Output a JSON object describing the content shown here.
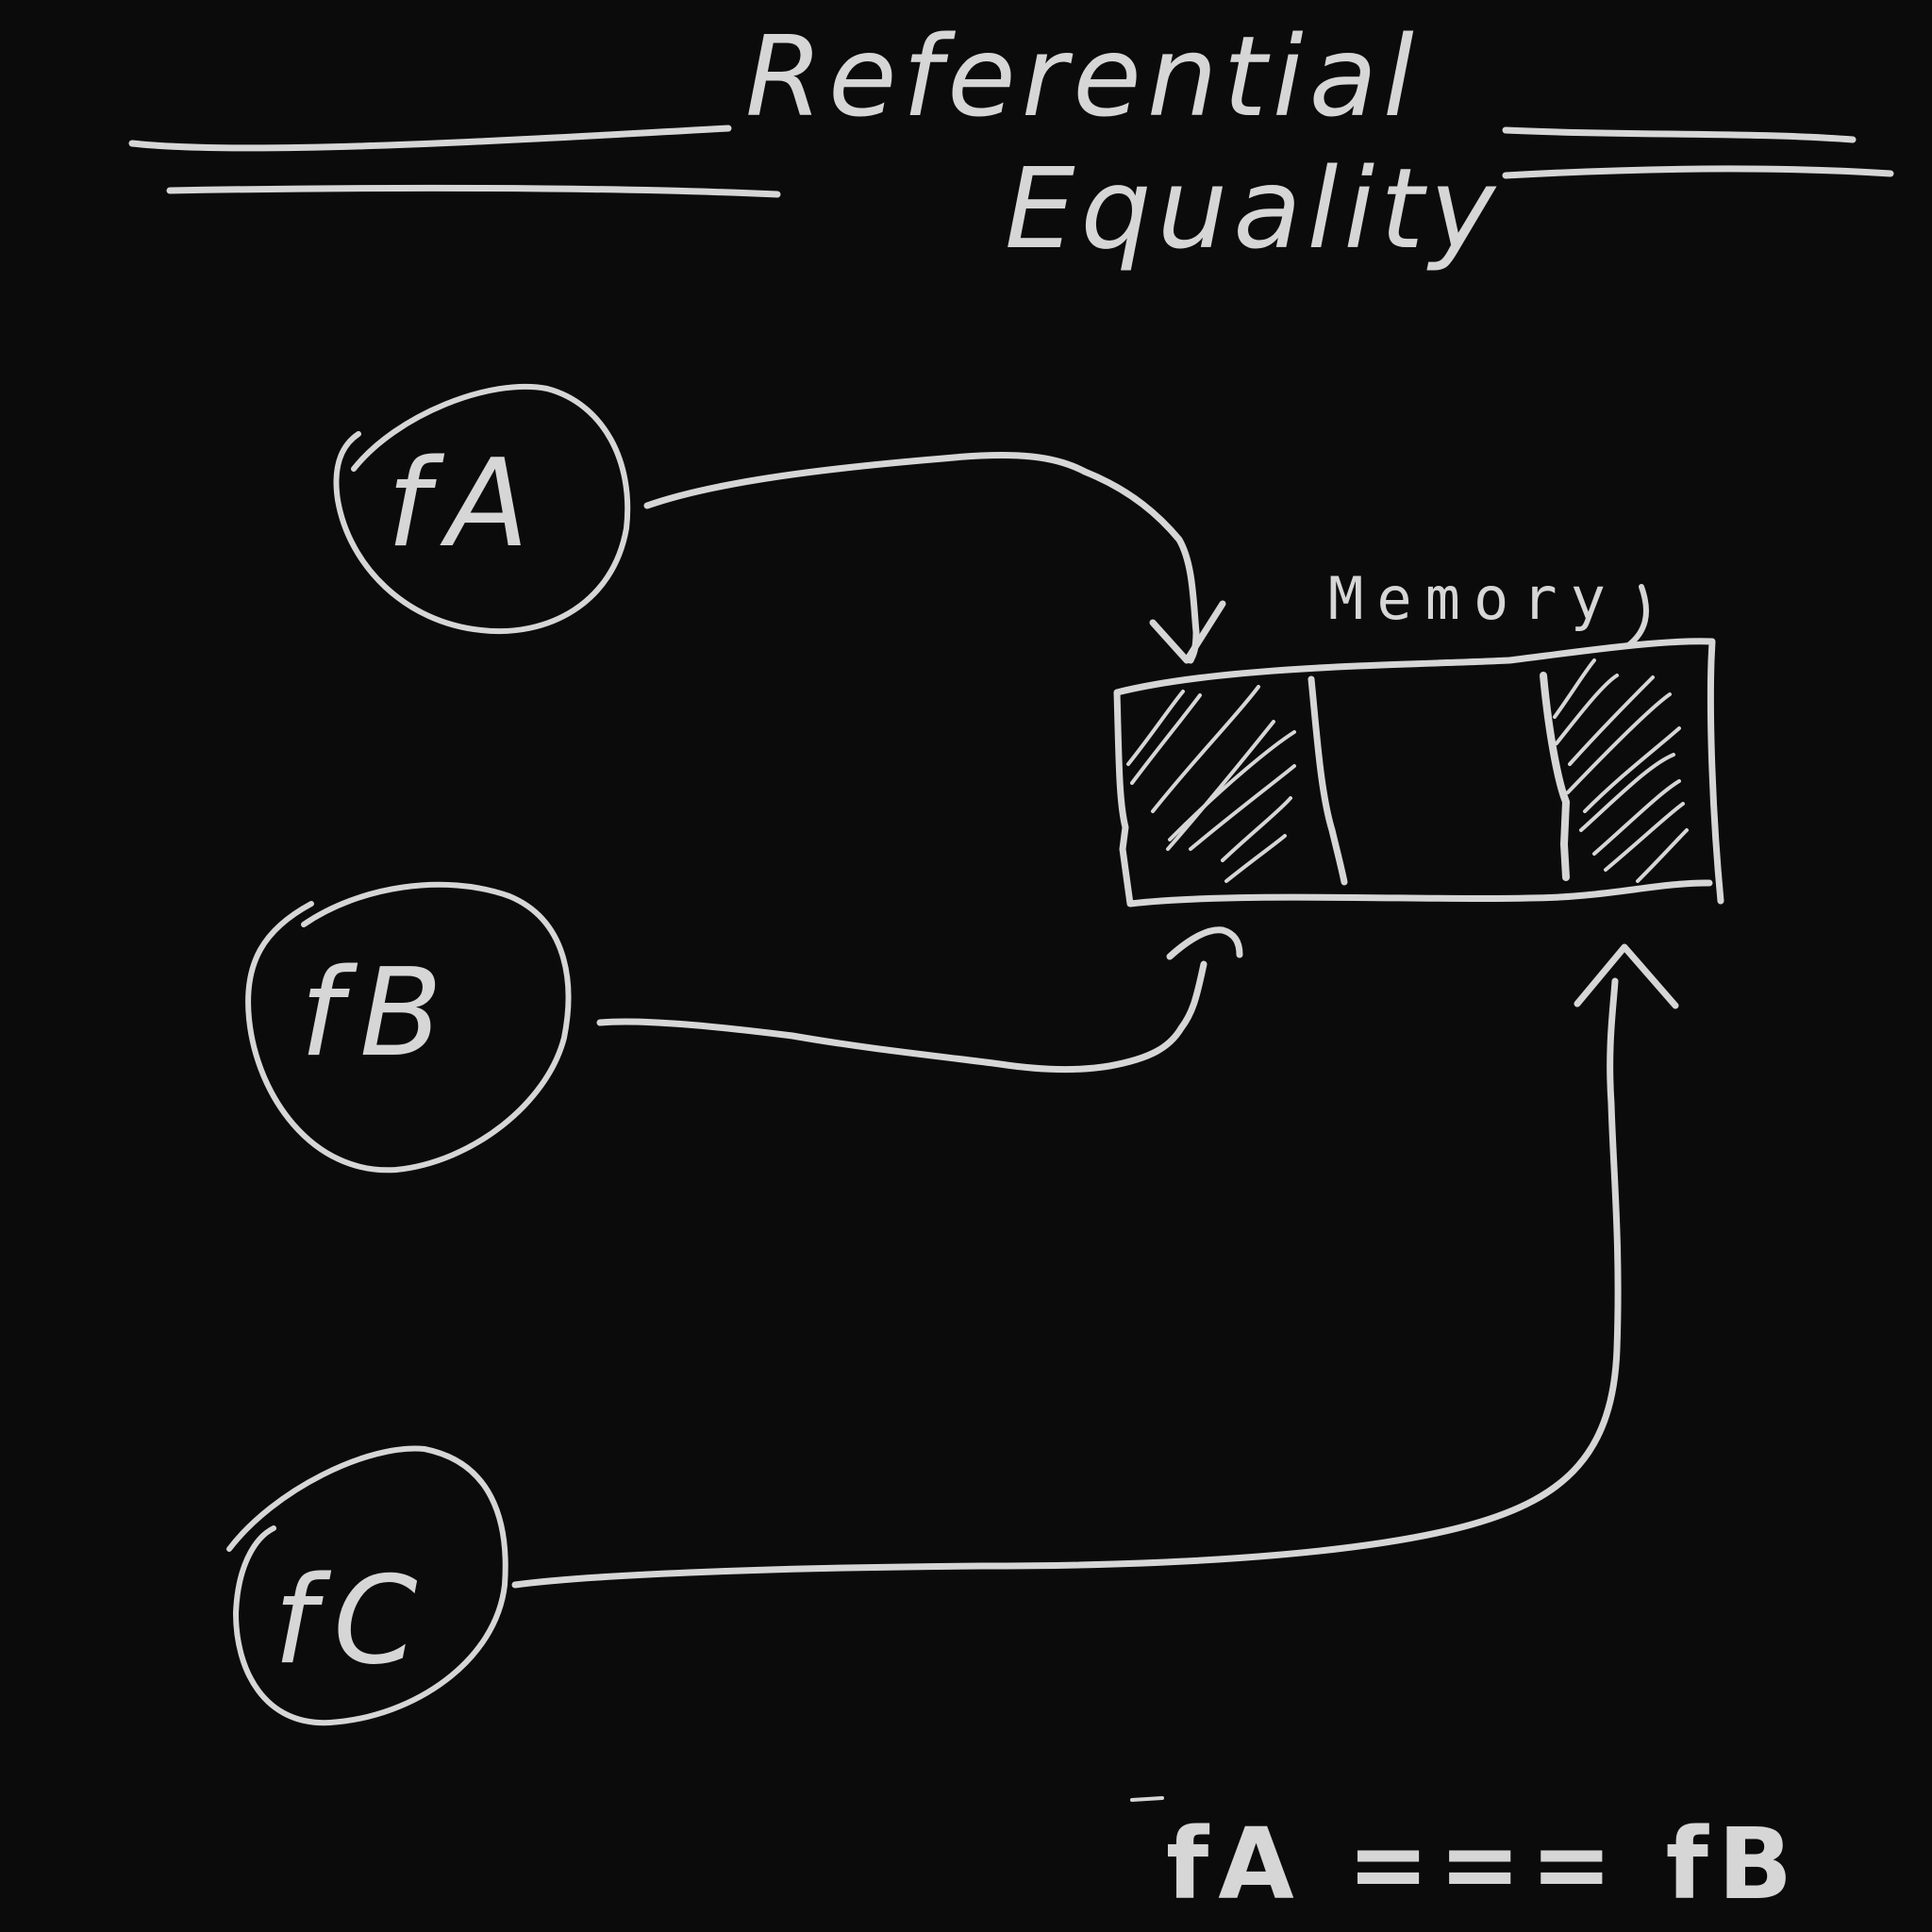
{
  "title": {
    "line1": "Referential",
    "line2": "Equality"
  },
  "nodes": [
    {
      "id": "fa",
      "label": "fA"
    },
    {
      "id": "fb",
      "label": "fB"
    },
    {
      "id": "fc",
      "label": "fC"
    }
  ],
  "memory": {
    "label": "Memory",
    "cells": [
      {
        "state": "occupied",
        "referenced_by": [
          "fA",
          "fB"
        ]
      },
      {
        "state": "empty",
        "referenced_by": []
      },
      {
        "state": "occupied",
        "referenced_by": [
          "fC"
        ]
      }
    ]
  },
  "expression": "fA === fB",
  "colors": {
    "background": "#0b0b0b",
    "ink": "#d6d6d6"
  }
}
